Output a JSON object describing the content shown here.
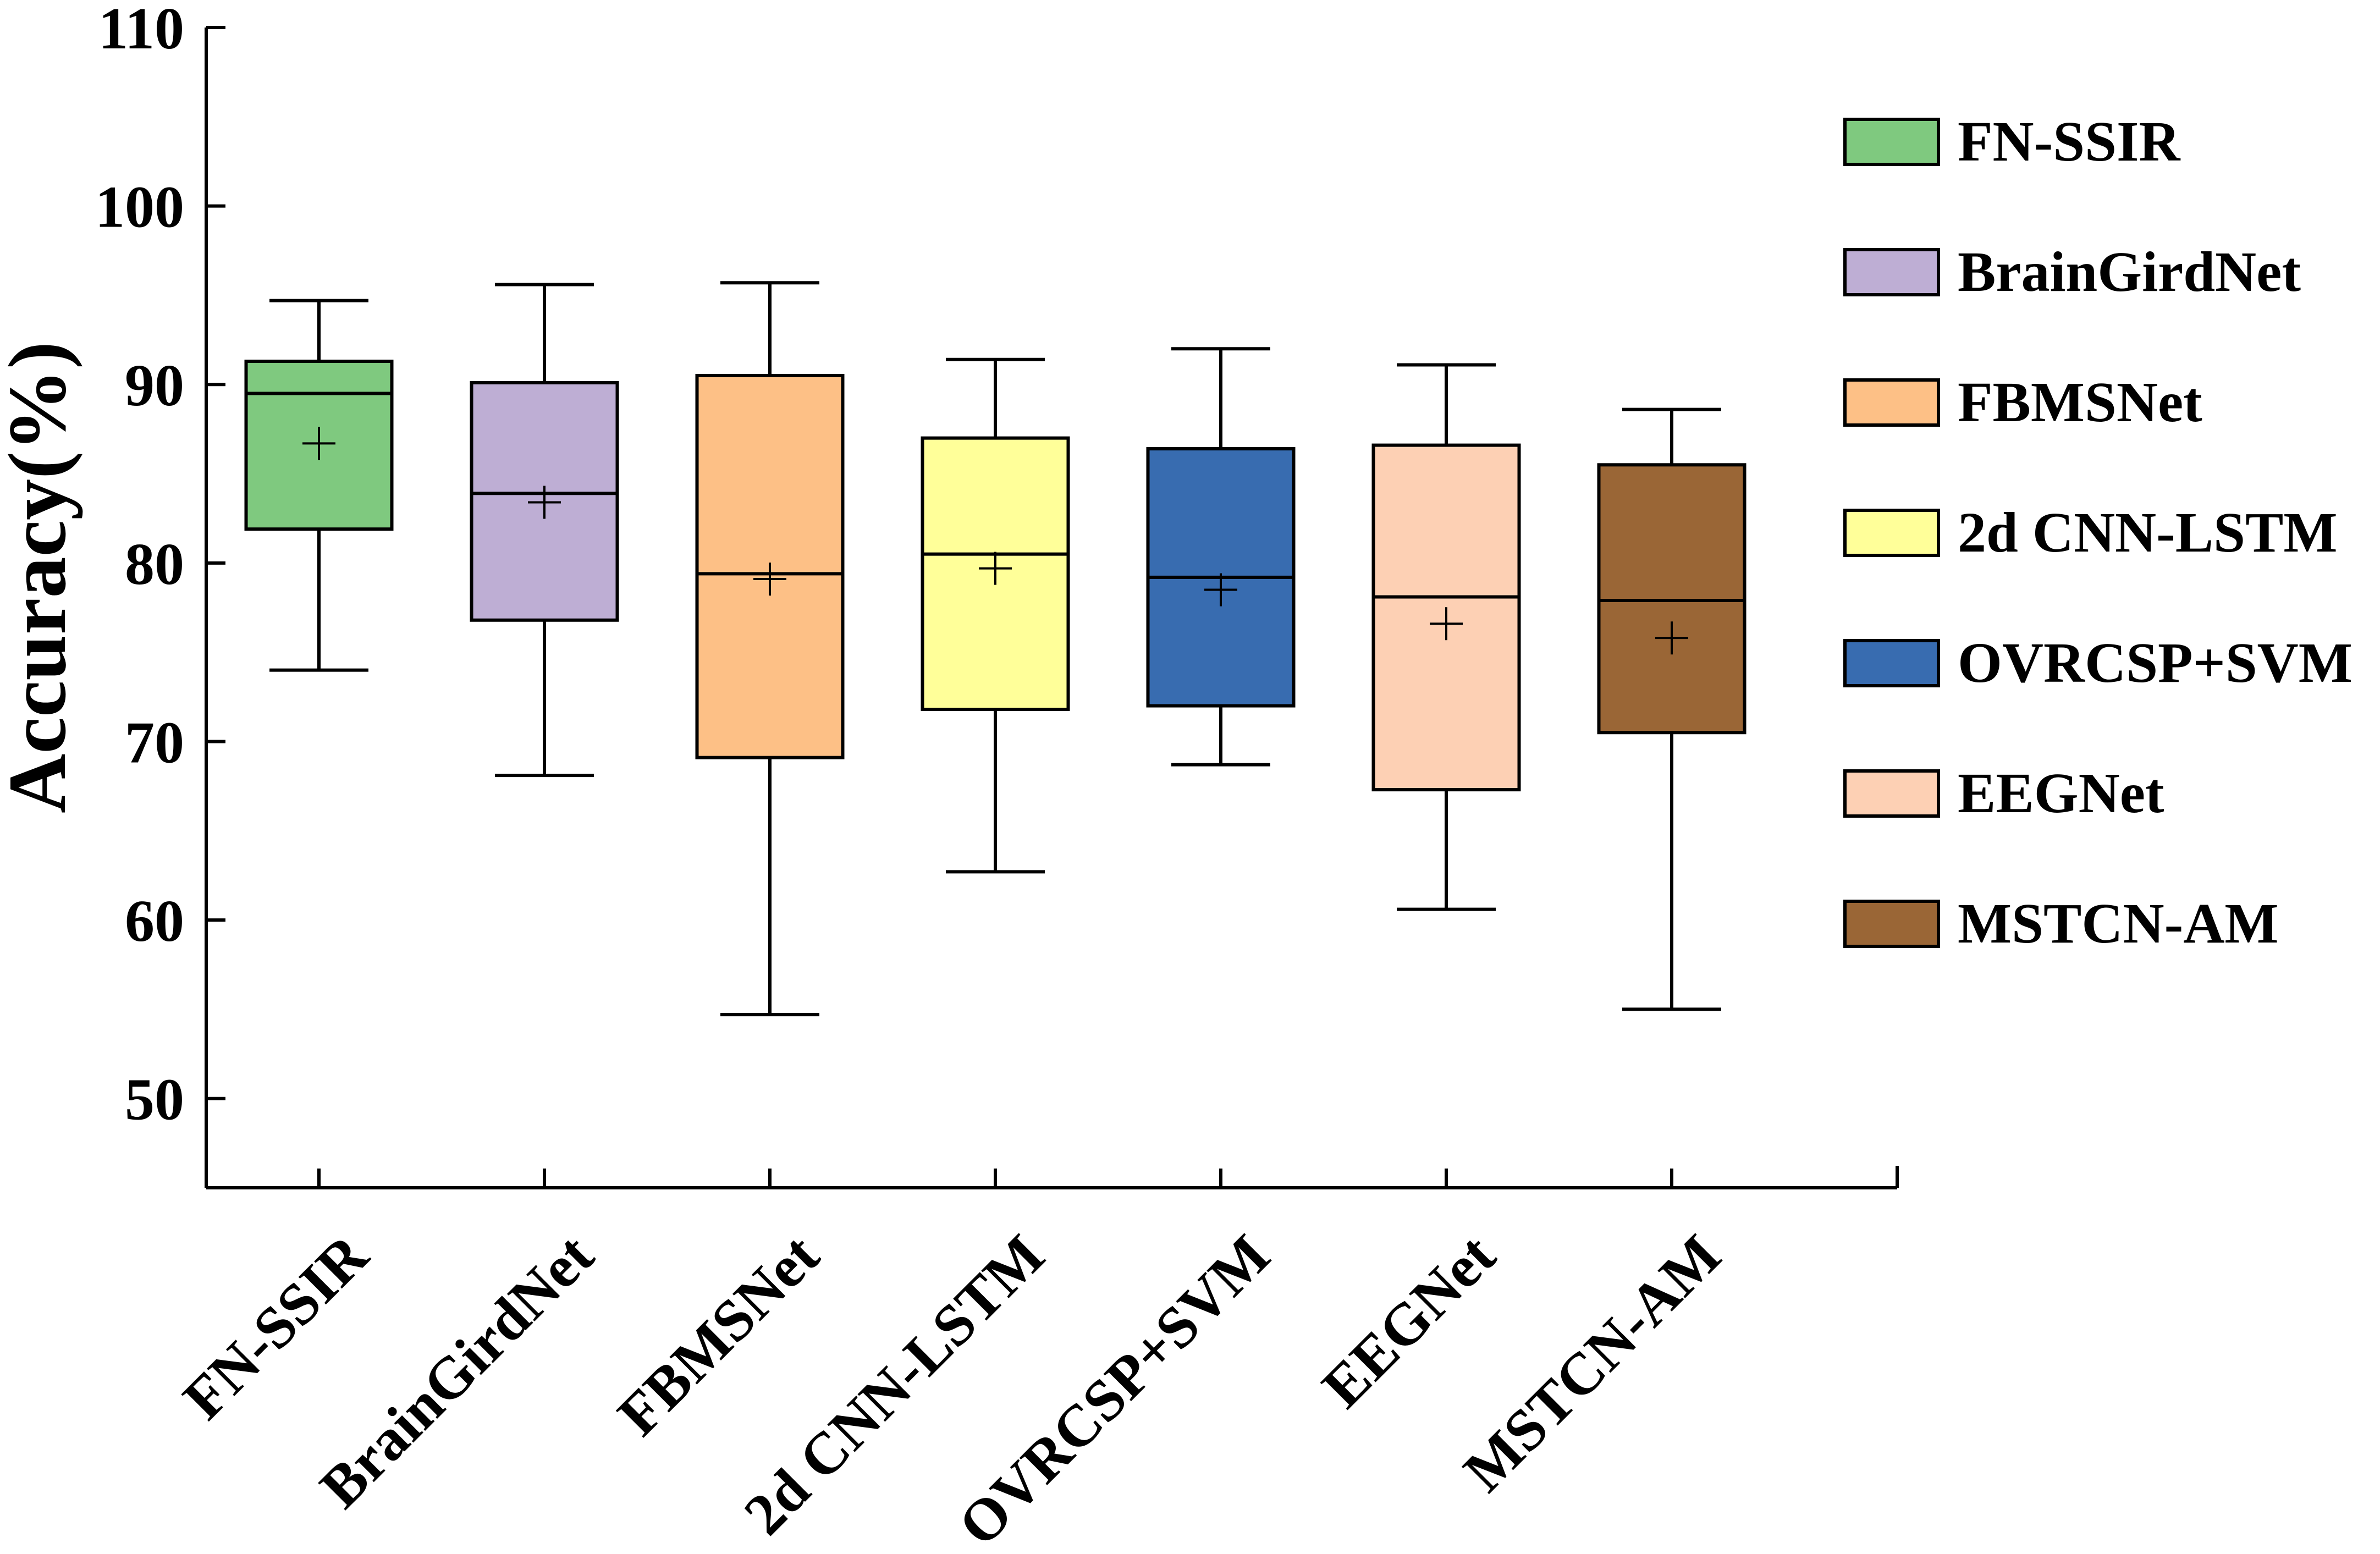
{
  "chart_data": {
    "type": "box",
    "title": "",
    "xlabel": "",
    "ylabel": "Accuracy(%)",
    "ylim": [
      45,
      110
    ],
    "yticks": [
      50,
      60,
      70,
      80,
      90,
      100,
      110
    ],
    "grid": false,
    "legend_position": "top-right",
    "series": [
      {
        "name": "FN-SSIR",
        "color": "#7fc97f",
        "whisker_low": 74.0,
        "q1": 81.9,
        "median": 89.5,
        "q3": 91.3,
        "whisker_high": 94.7,
        "mean": 86.7
      },
      {
        "name": "BrainGirdNet",
        "color": "#beaed4",
        "whisker_low": 68.1,
        "q1": 76.8,
        "median": 83.9,
        "q3": 90.1,
        "whisker_high": 95.6,
        "mean": 83.4
      },
      {
        "name": "FBMSNet",
        "color": "#fdc086",
        "whisker_low": 54.7,
        "q1": 69.1,
        "median": 79.4,
        "q3": 90.5,
        "whisker_high": 95.7,
        "mean": 79.1
      },
      {
        "name": "2d CNN-LSTM",
        "color": "#ffff99",
        "whisker_low": 62.7,
        "q1": 71.8,
        "median": 80.5,
        "q3": 87.0,
        "whisker_high": 91.4,
        "mean": 79.7
      },
      {
        "name": "OVRCSP+SVM",
        "color": "#386cb0",
        "whisker_low": 68.7,
        "q1": 72.0,
        "median": 79.2,
        "q3": 86.4,
        "whisker_high": 92.0,
        "mean": 78.5
      },
      {
        "name": "EEGNet",
        "color": "#fdd0b4",
        "whisker_low": 60.6,
        "q1": 67.3,
        "median": 78.1,
        "q3": 86.6,
        "whisker_high": 91.1,
        "mean": 76.6
      },
      {
        "name": "MSTCN-AM",
        "color": "#9a6636",
        "whisker_low": 55.0,
        "q1": 70.5,
        "median": 77.9,
        "q3": 85.5,
        "whisker_high": 88.6,
        "mean": 75.8
      }
    ]
  }
}
